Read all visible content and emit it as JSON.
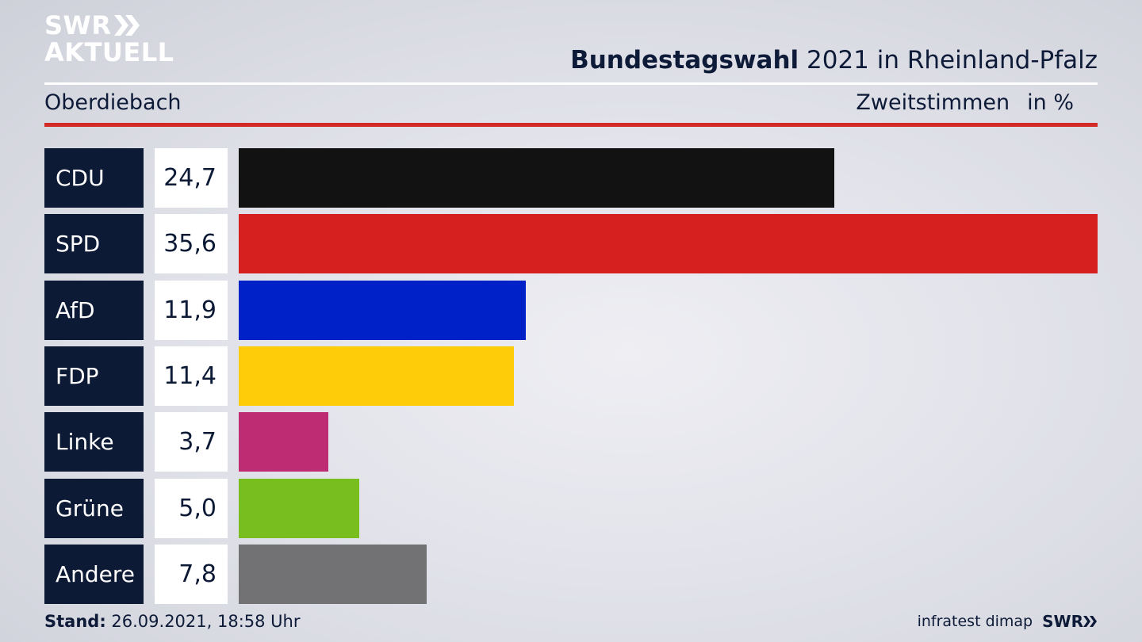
{
  "header": {
    "logo_line1": "SWR",
    "logo_line2": "AKTUELL",
    "title_strong": "Bundestagswahl",
    "title_rest": " 2021 in Rheinland-Pfalz",
    "region": "Oberdiebach",
    "measure": "Zweitstimmen",
    "unit": "in %"
  },
  "colors": {
    "CDU": "#121212",
    "SPD": "#d62020",
    "AfD": "#0020c8",
    "FDP": "#ffcc0a",
    "Linke": "#be2c74",
    "Grüne": "#78be1e",
    "Andere": "#727275"
  },
  "chart_data": {
    "type": "bar",
    "orientation": "horizontal",
    "categories": [
      "CDU",
      "SPD",
      "AfD",
      "FDP",
      "Linke",
      "Grüne",
      "Andere"
    ],
    "values": [
      24.7,
      35.6,
      11.9,
      11.4,
      3.7,
      5.0,
      7.8
    ],
    "value_labels": [
      "24,7",
      "35,6",
      "11,9",
      "11,4",
      "3,7",
      "5,0",
      "7,8"
    ],
    "xlim": [
      0,
      35.6
    ]
  },
  "footer": {
    "stand_label": "Stand:",
    "stand_value": " 26.09.2021, 18:58 Uhr",
    "source": "infratest dimap",
    "brand": "SWR"
  }
}
